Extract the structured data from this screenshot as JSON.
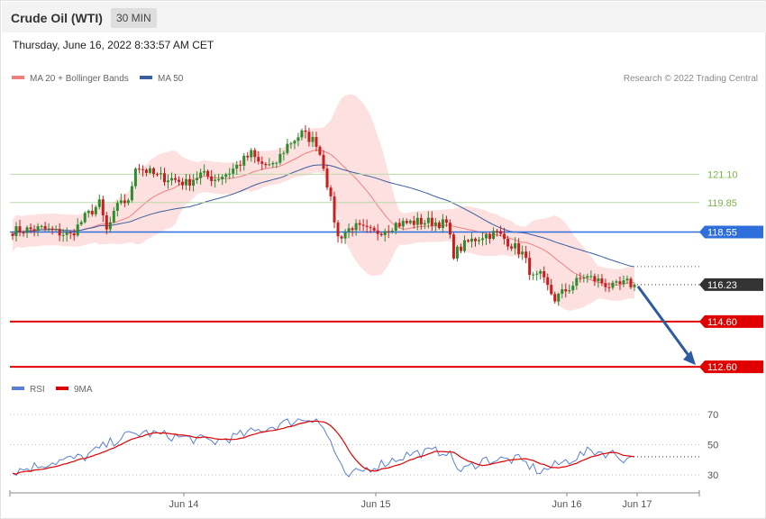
{
  "header": {
    "title": "Crude Oil (WTI)",
    "timeframe": "30 MIN",
    "datetime": "Thursday, June 16, 2022 8:33:57 AM CET"
  },
  "legend": {
    "ma20": "MA 20 + Bollinger Bands",
    "ma50": "MA 50",
    "ma20_color": "#f08080",
    "ma50_color": "#3a5fa0",
    "credit": "Research © 2022 Trading Central"
  },
  "rsi_legend": {
    "rsi": "RSI",
    "ma9": "9MA",
    "rsi_color": "#5b7fd6",
    "ma9_color": "#e00000"
  },
  "chart_data": [
    {
      "type": "candlestick",
      "y_range": [
        112.0,
        124.6
      ],
      "x_labels": [
        "Jun 14",
        "Jun 15",
        "Jun 16",
        "Jun 17"
      ],
      "current_price": 116.23,
      "levels": [
        {
          "value": 121.1,
          "label": "121.10",
          "kind": "resistance",
          "color": "#7ab648"
        },
        {
          "value": 119.85,
          "label": "119.85",
          "kind": "resistance",
          "color": "#7ab648"
        },
        {
          "value": 118.55,
          "label": "118.55",
          "kind": "pivot",
          "color": "#2f6fdb"
        },
        {
          "value": 114.6,
          "label": "114.60",
          "kind": "support",
          "color": "#e00000"
        },
        {
          "value": 112.6,
          "label": "112.60",
          "kind": "support",
          "color": "#e00000"
        }
      ],
      "forecast_target": 112.6,
      "arrow_color": "#2d5aa0",
      "up_color": "#2e8b2e",
      "down_color": "#c81e1e",
      "band_color": "#fde0e0"
    },
    {
      "type": "line",
      "name": "RSI",
      "y_range": [
        17,
        78
      ],
      "levels": [
        "70",
        "50",
        "30"
      ]
    }
  ]
}
